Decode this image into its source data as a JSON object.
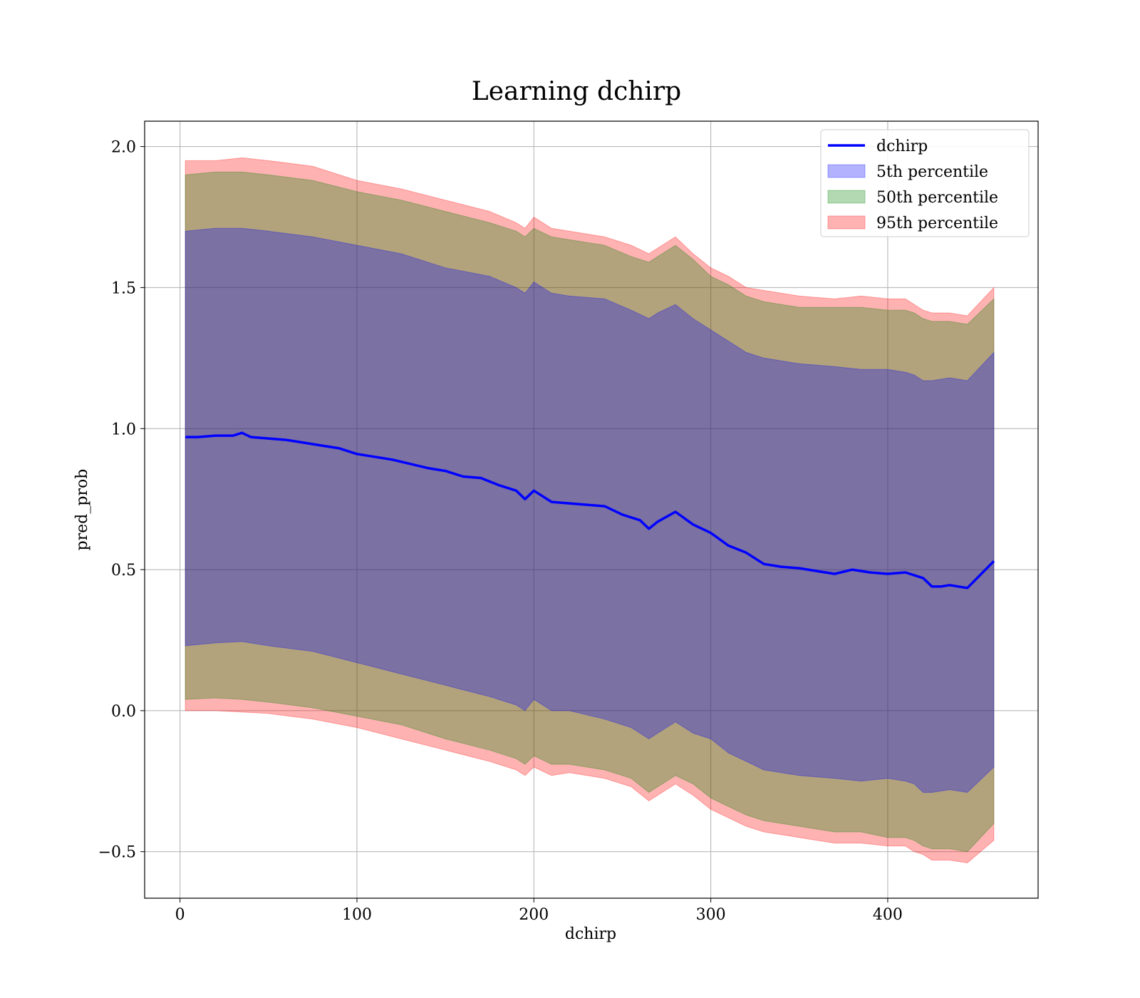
{
  "chart_data": {
    "type": "line",
    "title": "Learning dchirp",
    "xlabel": "dchirp",
    "ylabel": "pred_prob",
    "xlim": [
      -20,
      485
    ],
    "ylim": [
      -0.665,
      2.09
    ],
    "xticks": [
      0,
      100,
      200,
      300,
      400
    ],
    "yticks": [
      -0.5,
      0.0,
      0.5,
      1.0,
      1.5,
      2.0
    ],
    "xtick_labels": [
      "0",
      "100",
      "200",
      "300",
      "400"
    ],
    "ytick_labels": [
      "−0.5",
      "0.0",
      "0.5",
      "1.0",
      "1.5",
      "2.0"
    ],
    "grid": true,
    "legend_position": "top-right",
    "series_line": {
      "name": "dchirp",
      "color": "#0000ff",
      "x": [
        3,
        10,
        20,
        30,
        35,
        40,
        50,
        60,
        70,
        80,
        90,
        100,
        110,
        120,
        130,
        140,
        150,
        160,
        170,
        180,
        190,
        195,
        200,
        205,
        210,
        220,
        230,
        240,
        250,
        260,
        265,
        270,
        280,
        290,
        300,
        310,
        320,
        330,
        340,
        350,
        360,
        370,
        380,
        390,
        400,
        410,
        420,
        425,
        430,
        435,
        445,
        460
      ],
      "y": [
        0.97,
        0.97,
        0.975,
        0.975,
        0.985,
        0.97,
        0.965,
        0.96,
        0.95,
        0.94,
        0.93,
        0.91,
        0.9,
        0.89,
        0.875,
        0.86,
        0.85,
        0.83,
        0.825,
        0.8,
        0.78,
        0.75,
        0.78,
        0.76,
        0.74,
        0.735,
        0.73,
        0.725,
        0.695,
        0.675,
        0.645,
        0.67,
        0.705,
        0.66,
        0.63,
        0.585,
        0.56,
        0.52,
        0.51,
        0.505,
        0.495,
        0.485,
        0.5,
        0.49,
        0.485,
        0.49,
        0.47,
        0.44,
        0.44,
        0.445,
        0.435,
        0.53
      ]
    },
    "bands": [
      {
        "name": "95th percentile",
        "color": "#ff0000",
        "opacity": 0.3,
        "x": [
          3,
          20,
          35,
          50,
          75,
          100,
          125,
          150,
          175,
          190,
          195,
          200,
          210,
          220,
          240,
          255,
          265,
          270,
          280,
          290,
          300,
          310,
          320,
          330,
          350,
          370,
          385,
          400,
          410,
          415,
          420,
          425,
          435,
          445,
          460
        ],
        "lower": [
          0.0,
          0.0,
          -0.005,
          -0.01,
          -0.03,
          -0.06,
          -0.1,
          -0.14,
          -0.18,
          -0.21,
          -0.23,
          -0.2,
          -0.23,
          -0.22,
          -0.24,
          -0.27,
          -0.32,
          -0.3,
          -0.26,
          -0.3,
          -0.35,
          -0.38,
          -0.41,
          -0.43,
          -0.45,
          -0.47,
          -0.47,
          -0.48,
          -0.48,
          -0.5,
          -0.51,
          -0.53,
          -0.53,
          -0.54,
          -0.46
        ],
        "upper": [
          1.95,
          1.95,
          1.96,
          1.95,
          1.93,
          1.88,
          1.85,
          1.81,
          1.77,
          1.73,
          1.71,
          1.75,
          1.71,
          1.7,
          1.68,
          1.65,
          1.62,
          1.64,
          1.68,
          1.62,
          1.57,
          1.54,
          1.5,
          1.49,
          1.47,
          1.46,
          1.47,
          1.46,
          1.46,
          1.44,
          1.42,
          1.41,
          1.41,
          1.4,
          1.5
        ]
      },
      {
        "name": "50th percentile",
        "color": "#008000",
        "opacity": 0.3,
        "x": [
          3,
          20,
          35,
          50,
          75,
          100,
          125,
          150,
          175,
          190,
          195,
          200,
          210,
          220,
          240,
          255,
          265,
          270,
          280,
          290,
          300,
          310,
          320,
          330,
          350,
          370,
          385,
          400,
          410,
          415,
          420,
          425,
          435,
          445,
          460
        ],
        "lower": [
          0.04,
          0.045,
          0.04,
          0.03,
          0.01,
          -0.02,
          -0.05,
          -0.1,
          -0.14,
          -0.17,
          -0.19,
          -0.16,
          -0.19,
          -0.19,
          -0.21,
          -0.24,
          -0.29,
          -0.27,
          -0.23,
          -0.26,
          -0.31,
          -0.34,
          -0.37,
          -0.39,
          -0.41,
          -0.43,
          -0.43,
          -0.45,
          -0.45,
          -0.46,
          -0.48,
          -0.49,
          -0.49,
          -0.5,
          -0.4
        ],
        "upper": [
          1.9,
          1.91,
          1.91,
          1.9,
          1.88,
          1.84,
          1.81,
          1.77,
          1.73,
          1.7,
          1.68,
          1.71,
          1.68,
          1.67,
          1.65,
          1.61,
          1.59,
          1.61,
          1.65,
          1.6,
          1.54,
          1.51,
          1.47,
          1.45,
          1.43,
          1.43,
          1.43,
          1.42,
          1.42,
          1.41,
          1.39,
          1.38,
          1.38,
          1.37,
          1.46
        ]
      },
      {
        "name": "5th percentile",
        "color": "#0000ff",
        "opacity": 0.3,
        "x": [
          3,
          20,
          35,
          50,
          75,
          100,
          125,
          150,
          175,
          190,
          195,
          200,
          210,
          220,
          240,
          255,
          265,
          270,
          280,
          290,
          300,
          310,
          320,
          330,
          350,
          370,
          385,
          400,
          410,
          415,
          420,
          425,
          435,
          445,
          460
        ],
        "lower": [
          0.23,
          0.24,
          0.245,
          0.23,
          0.21,
          0.17,
          0.13,
          0.09,
          0.05,
          0.02,
          0.0,
          0.04,
          0.0,
          0.0,
          -0.03,
          -0.06,
          -0.1,
          -0.08,
          -0.04,
          -0.08,
          -0.1,
          -0.15,
          -0.18,
          -0.21,
          -0.23,
          -0.24,
          -0.25,
          -0.24,
          -0.25,
          -0.26,
          -0.29,
          -0.29,
          -0.28,
          -0.29,
          -0.2
        ],
        "upper": [
          1.7,
          1.71,
          1.71,
          1.7,
          1.68,
          1.65,
          1.62,
          1.57,
          1.54,
          1.5,
          1.48,
          1.52,
          1.48,
          1.47,
          1.46,
          1.42,
          1.39,
          1.41,
          1.44,
          1.39,
          1.35,
          1.31,
          1.27,
          1.25,
          1.23,
          1.22,
          1.21,
          1.21,
          1.2,
          1.19,
          1.17,
          1.17,
          1.18,
          1.17,
          1.27
        ]
      }
    ],
    "legend": [
      {
        "label": "dchirp",
        "kind": "line",
        "color": "#0000ff"
      },
      {
        "label": "5th percentile",
        "kind": "patch",
        "color": "#0000ff"
      },
      {
        "label": "50th percentile",
        "kind": "patch",
        "color": "#008000"
      },
      {
        "label": "95th percentile",
        "kind": "patch",
        "color": "#ff0000"
      }
    ]
  }
}
